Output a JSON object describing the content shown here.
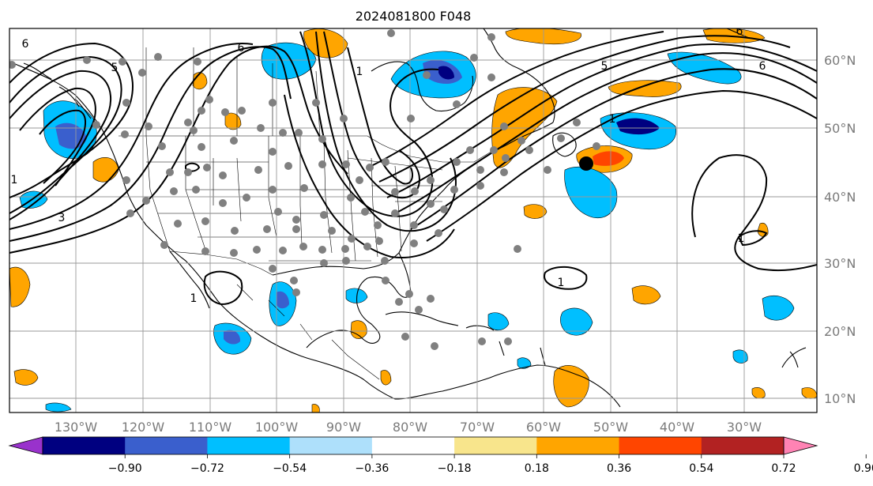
{
  "title": "2024081800 F048",
  "map": {
    "lon_range": [
      -138,
      -17
    ],
    "lat_range": [
      8,
      65
    ],
    "lon_ticks": [
      "130°W",
      "120°W",
      "110°W",
      "100°W",
      "90°W",
      "80°W",
      "70°W",
      "60°W",
      "50°W",
      "40°W",
      "30°W"
    ],
    "lat_ticks": [
      "60°N",
      "50°N",
      "40°N",
      "30°N",
      "20°N",
      "10°N"
    ],
    "grid": true,
    "colors": {
      "light_blue": "#aee0fb",
      "cyan": "#00bfff",
      "blue": "#3a5fcd",
      "navy": "#000080",
      "yellow": "#f8e58c",
      "orange": "#ffa500",
      "red_orange": "#ff4500",
      "dark_red": "#b22222",
      "pink": "#ff83b4",
      "purple": "#9932cc"
    }
  },
  "contour_labels": [
    "6",
    "6",
    "5",
    "1",
    "1",
    "1",
    "3",
    "1",
    "1",
    "1",
    "6",
    "5",
    "6"
  ],
  "colorbar": {
    "ticks": [
      "−0.90",
      "−0.72",
      "−0.54",
      "−0.36",
      "−0.18",
      "0.18",
      "0.36",
      "0.54",
      "0.72",
      "0.90"
    ],
    "colors": [
      "#9932cc",
      "#000080",
      "#3a5fcd",
      "#00bfff",
      "#aee0fb",
      "#ffffff",
      "#f8e58c",
      "#ffa500",
      "#ff4500",
      "#b22222",
      "#ff83b4"
    ]
  }
}
